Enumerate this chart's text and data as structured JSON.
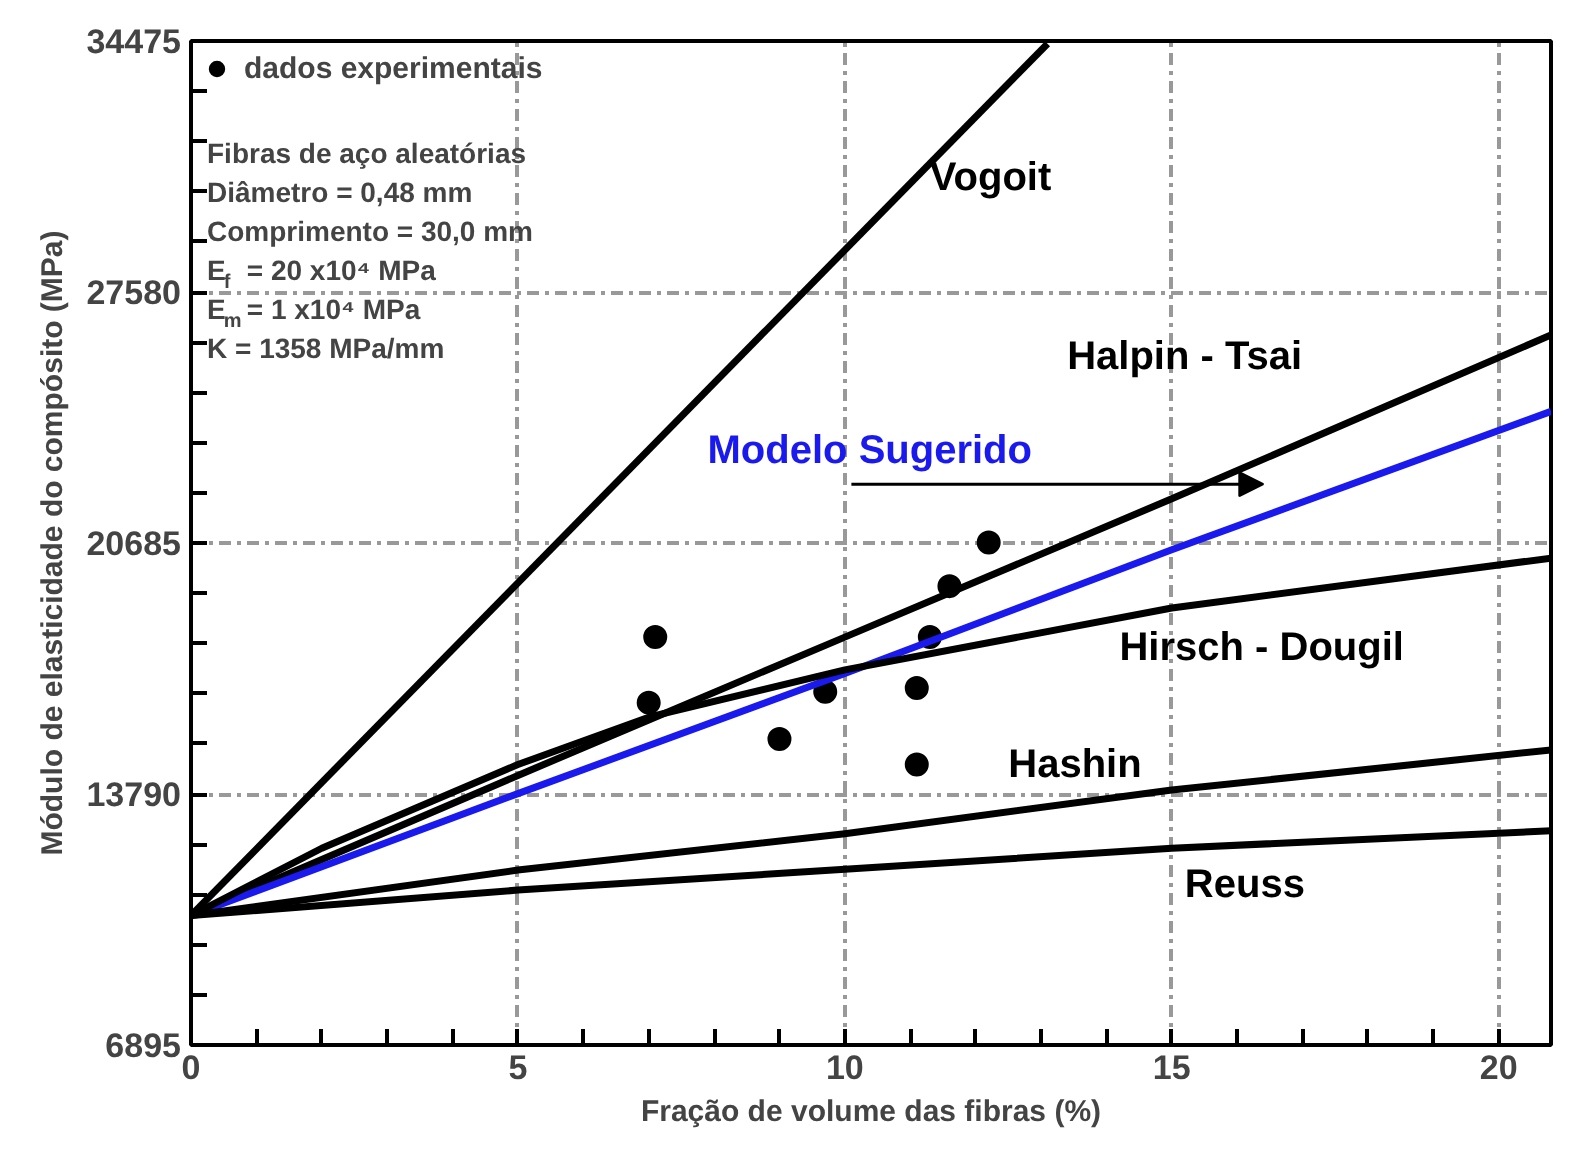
{
  "chart_data": {
    "type": "line",
    "xlabel": "Fração de volume das fibras (%)",
    "ylabel": "Módulo de elasticidade do compósito (MPa)",
    "xlim": [
      0,
      20.8
    ],
    "xticks": [
      0,
      5,
      10,
      15,
      20
    ],
    "ylim": [
      6895,
      34475
    ],
    "yticks": [
      6895,
      13790,
      20685,
      27580,
      34475
    ],
    "grid": true,
    "legend": "top left",
    "marker": "none",
    "line_style": "solid",
    "series": [
      {
        "name": "dados experimentais",
        "type": "scatter",
        "marker": "circle",
        "color": "#000000",
        "x": [
          7.0,
          7.1,
          9.0,
          9.7,
          11.1,
          11.3,
          11.6,
          12.2,
          11.1
        ],
        "values": [
          16300,
          18100,
          15300,
          16600,
          16700,
          18100,
          19500,
          20700,
          14600
        ]
      },
      {
        "name": "Vogoit",
        "color": "#000000",
        "x": [
          0,
          13.1
        ],
        "values": [
          10450,
          34400
        ]
      },
      {
        "name": "Halpin - Tsai",
        "color": "#000000",
        "x": [
          0,
          5,
          10,
          15,
          20.8
        ],
        "values": [
          10450,
          14300,
          18100,
          21900,
          26400
        ]
      },
      {
        "name": "Modelo  Sugerido",
        "color": "#1a1aee",
        "x": [
          0,
          5,
          10,
          15,
          20.8
        ],
        "values": [
          10450,
          13800,
          17100,
          20500,
          24300
        ]
      },
      {
        "name": "Hirsch - Dougil",
        "color": "#000000",
        "x": [
          0,
          2,
          5,
          7,
          10,
          15,
          20.8
        ],
        "values": [
          10450,
          12300,
          14600,
          15900,
          17200,
          18900,
          20270
        ]
      },
      {
        "name": "Hashin",
        "color": "#000000",
        "x": [
          0,
          5,
          10,
          15,
          20.8
        ],
        "values": [
          10450,
          11700,
          12700,
          13900,
          15000
        ]
      },
      {
        "name": "Reuss",
        "color": "#000000",
        "x": [
          0,
          5,
          10,
          15,
          20.8
        ],
        "values": [
          10450,
          11150,
          11720,
          12300,
          12780
        ]
      }
    ],
    "annotations": [
      "Fibras de aço aleatórias",
      "Diâmetro = 0,48 mm",
      "Comprimento = 30,0 mm",
      "E$_{f}$ =  20 x10⁴ MPa",
      "E$_{m}$ = 1 x10⁴  MPa",
      "K  = 1358     MPa/mm"
    ]
  }
}
